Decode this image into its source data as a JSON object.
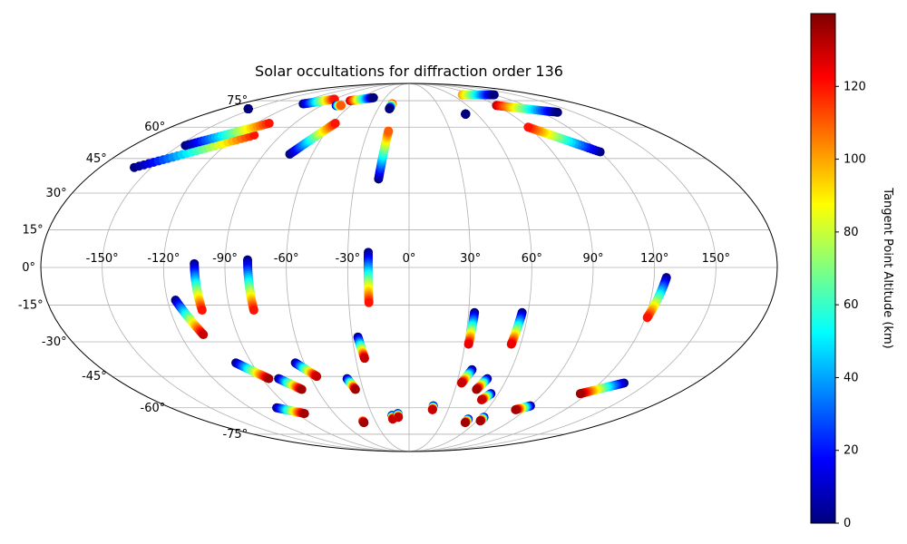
{
  "chart_data": {
    "type": "scatter",
    "title": "Solar occultations for diffraction order 136",
    "projection": "mollweide",
    "grid": true,
    "lon_ticks": [
      -150,
      -120,
      -90,
      -60,
      -30,
      0,
      30,
      60,
      90,
      120,
      150
    ],
    "lon_tick_labels": [
      "-150°",
      "-120°",
      "-90°",
      "-60°",
      "-30°",
      "0°",
      "30°",
      "60°",
      "90°",
      "120°",
      "150°"
    ],
    "lat_ticks": [
      -75,
      -60,
      -45,
      -30,
      -15,
      0,
      15,
      30,
      45,
      60,
      75
    ],
    "lat_tick_labels": [
      "-75°",
      "-60°",
      "-45°",
      "-30°",
      "-15°",
      "0°",
      "15°",
      "30°",
      "45°",
      "60°",
      "75°"
    ],
    "colorbar": {
      "label": "Tangent Point Altitude (km)",
      "range": [
        0,
        140
      ],
      "ticks": [
        0,
        20,
        40,
        60,
        80,
        100,
        120
      ],
      "tick_labels": [
        "0",
        "20",
        "40",
        "60",
        "80",
        "100",
        "120"
      ],
      "colormap": "jet",
      "position": "right"
    },
    "tracks": [
      {
        "lon_start": -105,
        "lat_start": 1.5,
        "lon_end": -104,
        "lat_end": -17,
        "alt_start": 0,
        "alt_end": 120
      },
      {
        "lon_start": -79,
        "lat_start": 3,
        "lon_end": -78,
        "lat_end": -17,
        "alt_start": 0,
        "alt_end": 120
      },
      {
        "lon_start": -20,
        "lat_start": 6,
        "lon_end": -20,
        "lat_end": -14,
        "alt_start": 0,
        "alt_end": 120
      },
      {
        "lon_start": -116,
        "lat_start": -13,
        "lon_end": -108,
        "lat_end": -27,
        "alt_start": 0,
        "alt_end": 130
      },
      {
        "lon_start": 126,
        "lat_start": -4,
        "lon_end": 121,
        "lat_end": -20,
        "alt_start": 0,
        "alt_end": 120
      },
      {
        "lon_start": 33,
        "lat_start": -18,
        "lon_end": 32,
        "lat_end": -31,
        "alt_start": 0,
        "alt_end": 125
      },
      {
        "lon_start": 57,
        "lat_start": -18,
        "lon_end": 55,
        "lat_end": -31,
        "alt_start": 0,
        "alt_end": 125
      },
      {
        "lon_start": -27,
        "lat_start": -28,
        "lon_end": -25,
        "lat_end": -37,
        "alt_start": 0,
        "alt_end": 130
      },
      {
        "lon_start": -99,
        "lat_start": -39,
        "lon_end": -86,
        "lat_end": -46,
        "alt_start": 0,
        "alt_end": 135
      },
      {
        "lon_start": -65,
        "lat_start": -39,
        "lon_end": -56,
        "lat_end": -45,
        "alt_start": 0,
        "alt_end": 130
      },
      {
        "lon_start": -80,
        "lat_start": -46,
        "lon_end": -70,
        "lat_end": -51,
        "alt_start": 0,
        "alt_end": 135
      },
      {
        "lon_start": -38,
        "lat_start": -46,
        "lon_end": -35,
        "lat_end": -51,
        "alt_start": 0,
        "alt_end": 135
      },
      {
        "lon_start": 37,
        "lat_start": -42,
        "lon_end": 33,
        "lat_end": -48,
        "alt_start": 0,
        "alt_end": 130
      },
      {
        "lon_start": 48,
        "lat_start": -46,
        "lon_end": 44,
        "lat_end": -51,
        "alt_start": 0,
        "alt_end": 135
      },
      {
        "lon_start": 55,
        "lat_start": -53,
        "lon_end": 51,
        "lat_end": -56,
        "alt_start": 0,
        "alt_end": 130
      },
      {
        "lon_start": 135,
        "lat_start": -48,
        "lon_end": 115,
        "lat_end": -53,
        "alt_start": 0,
        "alt_end": 135
      },
      {
        "lon_start": -100,
        "lat_start": -60,
        "lon_end": -84,
        "lat_end": -63,
        "alt_start": 0,
        "alt_end": 135
      },
      {
        "lon_start": 90,
        "lat_start": -59,
        "lon_end": 82,
        "lat_end": -61,
        "alt_start": 0,
        "alt_end": 135
      },
      {
        "lon_start": 18,
        "lat_start": -59,
        "lon_end": 18,
        "lat_end": -61,
        "alt_start": 0,
        "alt_end": 130
      },
      {
        "lon_start": -14,
        "lat_start": -64,
        "lon_end": -14,
        "lat_end": -66,
        "alt_start": 0,
        "alt_end": 130
      },
      {
        "lon_start": -9,
        "lat_start": -63,
        "lon_end": -9,
        "lat_end": -65,
        "alt_start": 0,
        "alt_end": 130
      },
      {
        "lon_start": -41,
        "lat_start": -67,
        "lon_end": -41,
        "lat_end": -68,
        "alt_start": 100,
        "alt_end": 135
      },
      {
        "lon_start": 51,
        "lat_start": -66,
        "lon_end": 51,
        "lat_end": -68,
        "alt_start": 0,
        "alt_end": 135
      },
      {
        "lon_start": 63,
        "lat_start": -65,
        "lon_end": 63,
        "lat_end": -67,
        "alt_start": 0,
        "alt_end": 135
      },
      {
        "lon_start": -160,
        "lat_start": 41,
        "lon_end": -109,
        "lat_end": 56,
        "alt_start": 0,
        "alt_end": 120
      },
      {
        "lon_start": -146,
        "lat_start": 51,
        "lon_end": -110,
        "lat_end": 62,
        "alt_start": 0,
        "alt_end": 120
      },
      {
        "lon_start": -74,
        "lat_start": 47,
        "lon_end": -58,
        "lat_end": 62,
        "alt_start": 0,
        "alt_end": 120
      },
      {
        "lon_start": -17,
        "lat_start": 36,
        "lon_end": -15,
        "lat_end": 58,
        "alt_start": 0,
        "alt_end": 110
      },
      {
        "lon_start": 120,
        "lat_start": 48,
        "lon_end": 90,
        "lat_end": 60,
        "alt_start": 0,
        "alt_end": 120
      },
      {
        "lon_start": -155,
        "lat_start": 70,
        "lon_end": -155,
        "lat_end": 70,
        "alt_start": 0,
        "alt_end": 0
      },
      {
        "lon_start": -113,
        "lat_start": 73,
        "lon_end": -90,
        "lat_end": 76,
        "alt_start": 0,
        "alt_end": 120
      },
      {
        "lon_start": -68,
        "lat_start": 75,
        "lon_end": -45,
        "lat_end": 77,
        "alt_start": 130,
        "alt_end": 0
      },
      {
        "lon_start": -75,
        "lat_start": 72,
        "lon_end": -70,
        "lat_end": 72,
        "alt_start": 0,
        "alt_end": 110
      },
      {
        "lon_start": -18,
        "lat_start": 73,
        "lon_end": -19,
        "lat_end": 70,
        "alt_start": 120,
        "alt_end": 0
      },
      {
        "lon_start": 50,
        "lat_start": 67,
        "lon_end": 50,
        "lat_end": 67,
        "alt_start": 0,
        "alt_end": 0
      },
      {
        "lon_start": 75,
        "lat_start": 79,
        "lon_end": 120,
        "lat_end": 79,
        "alt_start": 100,
        "alt_end": 0
      },
      {
        "lon_start": 90,
        "lat_start": 72,
        "lon_end": 135,
        "lat_end": 68,
        "alt_start": 130,
        "alt_end": 0
      }
    ]
  }
}
